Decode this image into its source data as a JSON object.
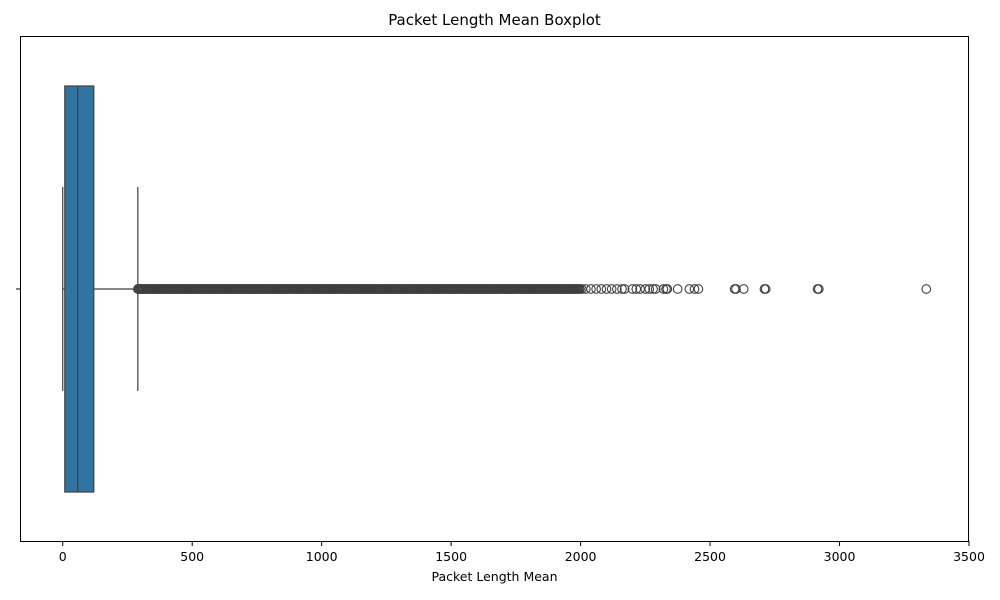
{
  "chart_data": {
    "type": "box",
    "title": "Packet Length Mean Boxplot",
    "xlabel": "Packet Length Mean",
    "ylabel": "",
    "xlim": [
      -165,
      3500
    ],
    "xticks": [
      0,
      500,
      1000,
      1500,
      2000,
      2500,
      3000,
      3500
    ],
    "grid": false,
    "orientation": "horizontal",
    "box": {
      "whisker_low": 0,
      "q1": 8,
      "median": 58,
      "q3": 120,
      "whisker_high": 290
    },
    "outlier_dense_range": [
      290,
      2000
    ],
    "outliers": [
      2005,
      2020,
      2040,
      2060,
      2080,
      2100,
      2120,
      2140,
      2160,
      2170,
      2200,
      2215,
      2230,
      2250,
      2265,
      2280,
      2290,
      2320,
      2330,
      2335,
      2375,
      2420,
      2440,
      2455,
      2595,
      2600,
      2630,
      2710,
      2715,
      2915,
      2920,
      3335
    ],
    "colors": {
      "box_fill": "#3274a1",
      "line": "#3f3f3f",
      "axis": "#000000"
    }
  }
}
